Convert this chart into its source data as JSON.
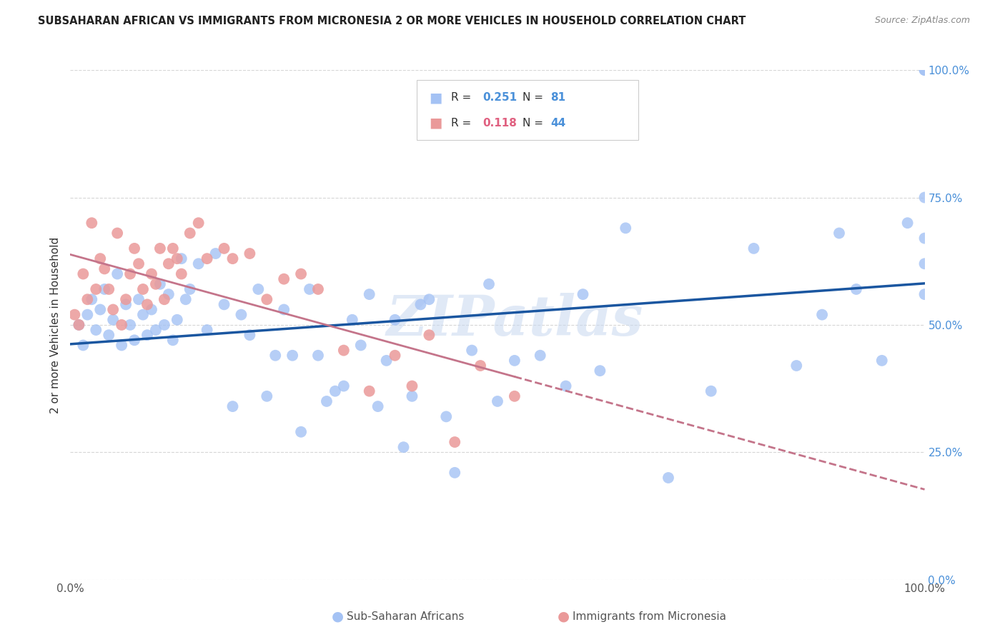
{
  "title": "SUBSAHARAN AFRICAN VS IMMIGRANTS FROM MICRONESIA 2 OR MORE VEHICLES IN HOUSEHOLD CORRELATION CHART",
  "source": "Source: ZipAtlas.com",
  "ylabel": "2 or more Vehicles in Household",
  "ytick_labels": [
    "0.0%",
    "25.0%",
    "50.0%",
    "75.0%",
    "100.0%"
  ],
  "ytick_values": [
    0,
    25,
    50,
    75,
    100
  ],
  "legend_label1": "Sub-Saharan Africans",
  "legend_label2": "Immigrants from Micronesia",
  "R1": 0.251,
  "N1": 81,
  "R2": 0.118,
  "N2": 44,
  "color_blue": "#a4c2f4",
  "color_pink": "#ea9999",
  "line_color_blue": "#1a56a0",
  "line_color_pink": "#c4748a",
  "watermark": "ZIPatlas",
  "blue_x": [
    1.0,
    1.5,
    2.0,
    2.5,
    3.0,
    3.5,
    4.0,
    4.5,
    5.0,
    5.5,
    6.0,
    6.5,
    7.0,
    7.5,
    8.0,
    8.5,
    9.0,
    9.5,
    10.0,
    10.5,
    11.0,
    11.5,
    12.0,
    12.5,
    13.0,
    13.5,
    14.0,
    15.0,
    16.0,
    17.0,
    18.0,
    19.0,
    20.0,
    21.0,
    22.0,
    23.0,
    24.0,
    25.0,
    26.0,
    27.0,
    28.0,
    29.0,
    30.0,
    31.0,
    32.0,
    33.0,
    34.0,
    35.0,
    36.0,
    37.0,
    38.0,
    39.0,
    40.0,
    41.0,
    42.0,
    44.0,
    45.0,
    47.0,
    49.0,
    50.0,
    52.0,
    55.0,
    58.0,
    60.0,
    62.0,
    65.0,
    70.0,
    75.0,
    80.0,
    85.0,
    88.0,
    90.0,
    92.0,
    95.0,
    98.0,
    100.0,
    100.0,
    100.0,
    100.0,
    100.0,
    100.0
  ],
  "blue_y": [
    50,
    46,
    52,
    55,
    49,
    53,
    57,
    48,
    51,
    60,
    46,
    54,
    50,
    47,
    55,
    52,
    48,
    53,
    49,
    58,
    50,
    56,
    47,
    51,
    63,
    55,
    57,
    62,
    49,
    64,
    54,
    34,
    52,
    48,
    57,
    36,
    44,
    53,
    44,
    29,
    57,
    44,
    35,
    37,
    38,
    51,
    46,
    56,
    34,
    43,
    51,
    26,
    36,
    54,
    55,
    32,
    21,
    45,
    58,
    35,
    43,
    44,
    38,
    56,
    41,
    69,
    20,
    37,
    65,
    42,
    52,
    68,
    57,
    43,
    70,
    100,
    75,
    67,
    62,
    56,
    100
  ],
  "pink_x": [
    0.5,
    1.0,
    1.5,
    2.0,
    2.5,
    3.0,
    3.5,
    4.0,
    4.5,
    5.0,
    5.5,
    6.0,
    6.5,
    7.0,
    7.5,
    8.0,
    8.5,
    9.0,
    9.5,
    10.0,
    10.5,
    11.0,
    11.5,
    12.0,
    12.5,
    13.0,
    14.0,
    15.0,
    16.0,
    18.0,
    19.0,
    21.0,
    23.0,
    25.0,
    27.0,
    29.0,
    32.0,
    35.0,
    38.0,
    40.0,
    42.0,
    45.0,
    48.0,
    52.0
  ],
  "pink_y": [
    52,
    50,
    60,
    55,
    70,
    57,
    63,
    61,
    57,
    53,
    68,
    50,
    55,
    60,
    65,
    62,
    57,
    54,
    60,
    58,
    65,
    55,
    62,
    65,
    63,
    60,
    68,
    70,
    63,
    65,
    63,
    64,
    55,
    59,
    60,
    57,
    45,
    37,
    44,
    38,
    48,
    27,
    42,
    36
  ]
}
